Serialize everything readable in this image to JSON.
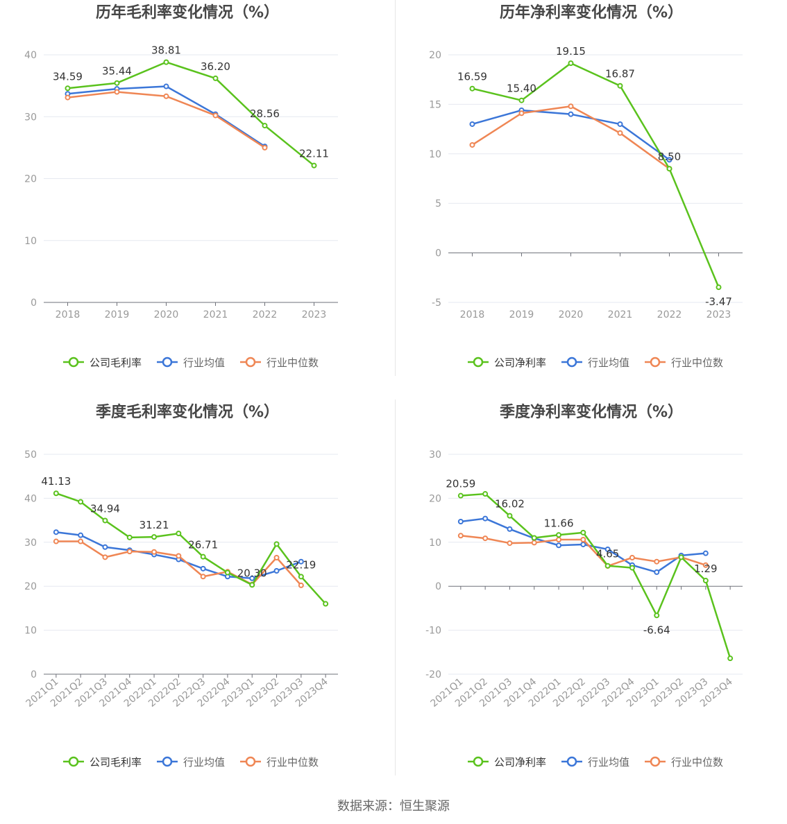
{
  "colors": {
    "company": "#5ac21d",
    "avg": "#3b76d8",
    "median": "#ef8654",
    "axis_text": "#999999",
    "grid": "#e6e8f0",
    "title": "#464646",
    "label": "#333333"
  },
  "source_text": "数据来源：恒生聚源",
  "chart_data": [
    {
      "type": "line",
      "title": "历年毛利率变化情况（%）",
      "categories": [
        "2018",
        "2019",
        "2020",
        "2021",
        "2022",
        "2023"
      ],
      "ylim": [
        0,
        40
      ],
      "yticks": [
        0,
        10,
        20,
        30,
        40
      ],
      "series": [
        {
          "name": "公司毛利率",
          "key": "company",
          "values": [
            34.59,
            35.44,
            38.81,
            36.2,
            28.56,
            22.11
          ],
          "labels": [
            "34.59",
            "35.44",
            "38.81",
            "36.20",
            "28.56",
            "22.11"
          ]
        },
        {
          "name": "行业均值",
          "key": "avg",
          "values": [
            33.7,
            34.5,
            34.9,
            30.4,
            25.2,
            null
          ]
        },
        {
          "name": "行业中位数",
          "key": "median",
          "values": [
            33.1,
            34.0,
            33.3,
            30.2,
            25.0,
            null
          ]
        }
      ],
      "grid": true,
      "legend_position": "bottom"
    },
    {
      "type": "line",
      "title": "历年净利率变化情况（%）",
      "categories": [
        "2018",
        "2019",
        "2020",
        "2021",
        "2022",
        "2023"
      ],
      "ylim": [
        -5,
        20
      ],
      "yticks": [
        -5,
        0,
        5,
        10,
        15,
        20
      ],
      "series": [
        {
          "name": "公司净利率",
          "key": "company",
          "values": [
            16.59,
            15.4,
            19.15,
            16.87,
            8.5,
            -3.47
          ],
          "labels": [
            "16.59",
            "15.40",
            "19.15",
            "16.87",
            "8.50",
            "-3.47"
          ]
        },
        {
          "name": "行业均值",
          "key": "avg",
          "values": [
            13.0,
            14.4,
            14.0,
            13.0,
            9.4,
            null
          ]
        },
        {
          "name": "行业中位数",
          "key": "median",
          "values": [
            10.9,
            14.1,
            14.8,
            12.1,
            8.5,
            null
          ]
        }
      ],
      "grid": true,
      "legend_position": "bottom"
    },
    {
      "type": "line",
      "title": "季度毛利率变化情况（%）",
      "categories": [
        "2021Q1",
        "2021Q2",
        "2021Q3",
        "2021Q4",
        "2022Q1",
        "2022Q2",
        "2022Q3",
        "2022Q4",
        "2023Q1",
        "2023Q2",
        "2023Q3",
        "2023Q4"
      ],
      "ylim": [
        0,
        50
      ],
      "yticks": [
        0,
        10,
        20,
        30,
        40,
        50
      ],
      "series": [
        {
          "name": "公司毛利率",
          "key": "company",
          "values": [
            41.13,
            39.2,
            34.94,
            31.1,
            31.21,
            32.0,
            26.71,
            23.1,
            20.3,
            29.6,
            22.19,
            16.0
          ],
          "labels": [
            "41.13",
            "",
            "34.94",
            "",
            "31.21",
            "",
            "26.71",
            "",
            "20.30",
            "",
            "22.19",
            ""
          ]
        },
        {
          "name": "行业均值",
          "key": "avg",
          "values": [
            32.3,
            31.6,
            28.9,
            28.2,
            27.2,
            26.1,
            24.0,
            22.2,
            21.8,
            23.5,
            25.6,
            null
          ]
        },
        {
          "name": "行业中位数",
          "key": "median",
          "values": [
            30.2,
            30.2,
            26.6,
            27.9,
            27.8,
            26.9,
            22.2,
            23.3,
            20.4,
            26.5,
            20.2,
            null
          ]
        }
      ],
      "grid": true,
      "legend_position": "bottom"
    },
    {
      "type": "line",
      "title": "季度净利率变化情况（%）",
      "categories": [
        "2021Q1",
        "2021Q2",
        "2021Q3",
        "2021Q4",
        "2022Q1",
        "2022Q2",
        "2022Q3",
        "2022Q4",
        "2023Q1",
        "2023Q2",
        "2023Q3",
        "2023Q4"
      ],
      "ylim": [
        -20,
        30
      ],
      "yticks": [
        -20,
        -10,
        0,
        10,
        20,
        30
      ],
      "series": [
        {
          "name": "公司净利率",
          "key": "company",
          "values": [
            20.59,
            21.0,
            16.02,
            11.0,
            11.66,
            12.2,
            4.65,
            4.2,
            -6.64,
            6.6,
            1.29,
            -16.4
          ],
          "labels": [
            "20.59",
            "",
            "16.02",
            "",
            "11.66",
            "",
            "4.65",
            "",
            "-6.64",
            "",
            "1.29",
            ""
          ]
        },
        {
          "name": "行业均值",
          "key": "avg",
          "values": [
            14.7,
            15.4,
            13.0,
            10.9,
            9.3,
            9.5,
            8.4,
            4.8,
            3.2,
            7.0,
            7.5,
            null
          ]
        },
        {
          "name": "行业中位数",
          "key": "median",
          "values": [
            11.5,
            10.9,
            9.8,
            9.9,
            10.6,
            10.6,
            4.6,
            6.5,
            5.6,
            6.6,
            4.8,
            null
          ]
        }
      ],
      "grid": true,
      "legend_position": "bottom"
    }
  ]
}
